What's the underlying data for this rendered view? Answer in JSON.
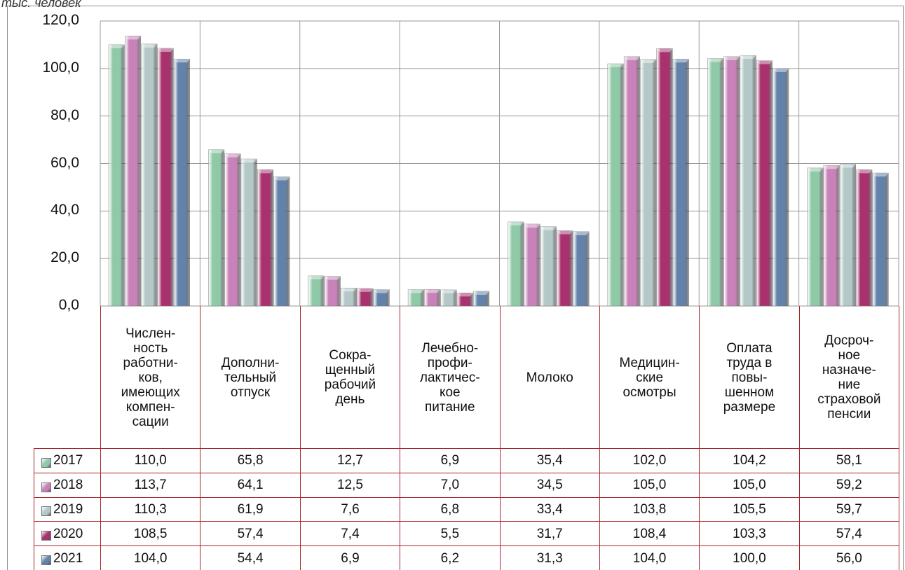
{
  "chart_data": {
    "type": "bar",
    "y_label": "тыс. человек",
    "categories": [
      "Числен-\nность\nработни-\nков,\nимеющих\nкомпен-\nсации",
      "Дополни-\nтельный\nотпуск",
      "Сокра-\nщенный\nрабочий\nдень",
      "Лечебно-\nпрофи-\nлактичес-\nкое\nпитание",
      "Молоко",
      "Медицин-\nские\nосмотры",
      "Оплата\nтруда в\nповы-\nшенном\nразмере",
      "Досроч-\nное\nназначе-\nние\nстраховой\nпенсии"
    ],
    "series": [
      {
        "name": "2017",
        "color": "#8fc9a8",
        "values": [
          110.0,
          65.8,
          12.7,
          6.9,
          35.4,
          102.0,
          104.2,
          58.1
        ],
        "value_labels": [
          "110,0",
          "65,8",
          "12,7",
          "6,9",
          "35,4",
          "102,0",
          "104,2",
          "58,1"
        ]
      },
      {
        "name": "2018",
        "color": "#c882b9",
        "values": [
          113.7,
          64.1,
          12.5,
          7.0,
          34.5,
          105.0,
          105.0,
          59.2
        ],
        "value_labels": [
          "113,7",
          "64,1",
          "12,5",
          "7,0",
          "34,5",
          "105,0",
          "105,0",
          "59,2"
        ]
      },
      {
        "name": "2019",
        "color": "#b4c8c8",
        "values": [
          110.3,
          61.9,
          7.6,
          6.8,
          33.4,
          103.8,
          105.5,
          59.7
        ],
        "value_labels": [
          "110,3",
          "61,9",
          "7,6",
          "6,8",
          "33,4",
          "103,8",
          "105,5",
          "59,7"
        ]
      },
      {
        "name": "2020",
        "color": "#a8316e",
        "values": [
          108.5,
          57.4,
          7.4,
          5.5,
          31.7,
          108.4,
          103.3,
          57.4
        ],
        "value_labels": [
          "108,5",
          "57,4",
          "7,4",
          "5,5",
          "31,7",
          "108,4",
          "103,3",
          "57,4"
        ]
      },
      {
        "name": "2021",
        "color": "#6382aa",
        "values": [
          104.0,
          54.4,
          6.9,
          6.2,
          31.3,
          104.0,
          100.0,
          56.0
        ],
        "value_labels": [
          "104,0",
          "54,4",
          "6,9",
          "6,2",
          "31,3",
          "104,0",
          "100,0",
          "56,0"
        ]
      }
    ],
    "ylim": [
      0,
      120
    ],
    "yticks": [
      {
        "value": 0,
        "label": "0,0"
      },
      {
        "value": 20,
        "label": "20,0"
      },
      {
        "value": 40,
        "label": "40,0"
      },
      {
        "value": 60,
        "label": "60,0"
      },
      {
        "value": 80,
        "label": "80,0"
      },
      {
        "value": 100,
        "label": "100,0"
      },
      {
        "value": 120,
        "label": "120,0"
      }
    ],
    "grid": true
  }
}
